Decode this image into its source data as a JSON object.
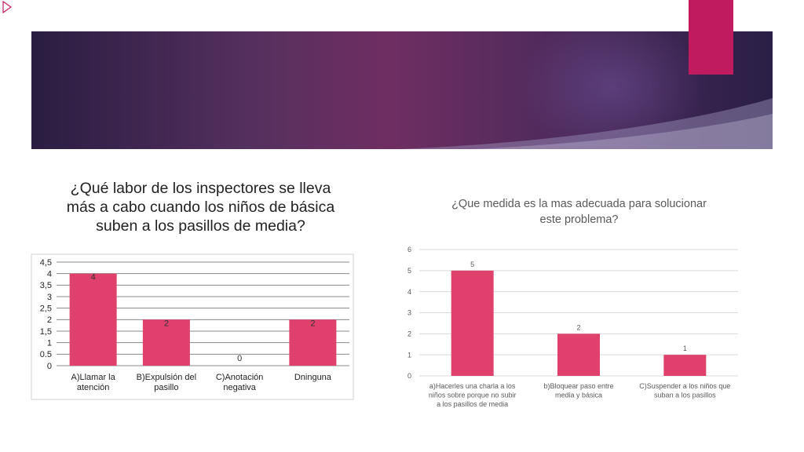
{
  "slide": {
    "colors": {
      "bar": "#e0406c",
      "accent": "#c01b5f",
      "arrow": "#c01b5f"
    }
  },
  "chart_data": [
    {
      "type": "bar",
      "title": "¿Qué labor de los inspectores se lleva más a cabo cuando los niños de básica suben a los pasillos de media?",
      "categories": [
        [
          "A)Llamar la",
          "atención"
        ],
        [
          "B)Expulsión del",
          "pasillo"
        ],
        [
          "C)Anotación",
          "negativa"
        ],
        [
          "Dninguna"
        ]
      ],
      "values": [
        4,
        2,
        0,
        2
      ],
      "data_labels": [
        "4",
        "2",
        "0",
        "2"
      ],
      "y_ticks": [
        "0",
        "0.5",
        "1",
        "1,5",
        "2",
        "2,5",
        "3",
        "3,5",
        "4",
        "4,5"
      ],
      "ylim": [
        0,
        4.5
      ],
      "grid": true,
      "legend": "none"
    },
    {
      "type": "bar",
      "title": "¿Que medida es la mas adecuada para solucionar este problema?",
      "categories": [
        [
          "a)Hacerles una charla a los",
          "niños sobre porque no subir",
          "a los pasillos de media"
        ],
        [
          "b)Bloquear paso entre",
          "media y básica"
        ],
        [
          "C)Suspender a los niños que",
          "suban a los pasillos"
        ]
      ],
      "values": [
        5,
        2,
        1
      ],
      "data_labels": [
        "5",
        "2",
        "1"
      ],
      "y_ticks": [
        "0",
        "1",
        "2",
        "3",
        "4",
        "5",
        "6"
      ],
      "ylim": [
        0,
        6
      ],
      "grid": true,
      "legend": "none"
    }
  ]
}
